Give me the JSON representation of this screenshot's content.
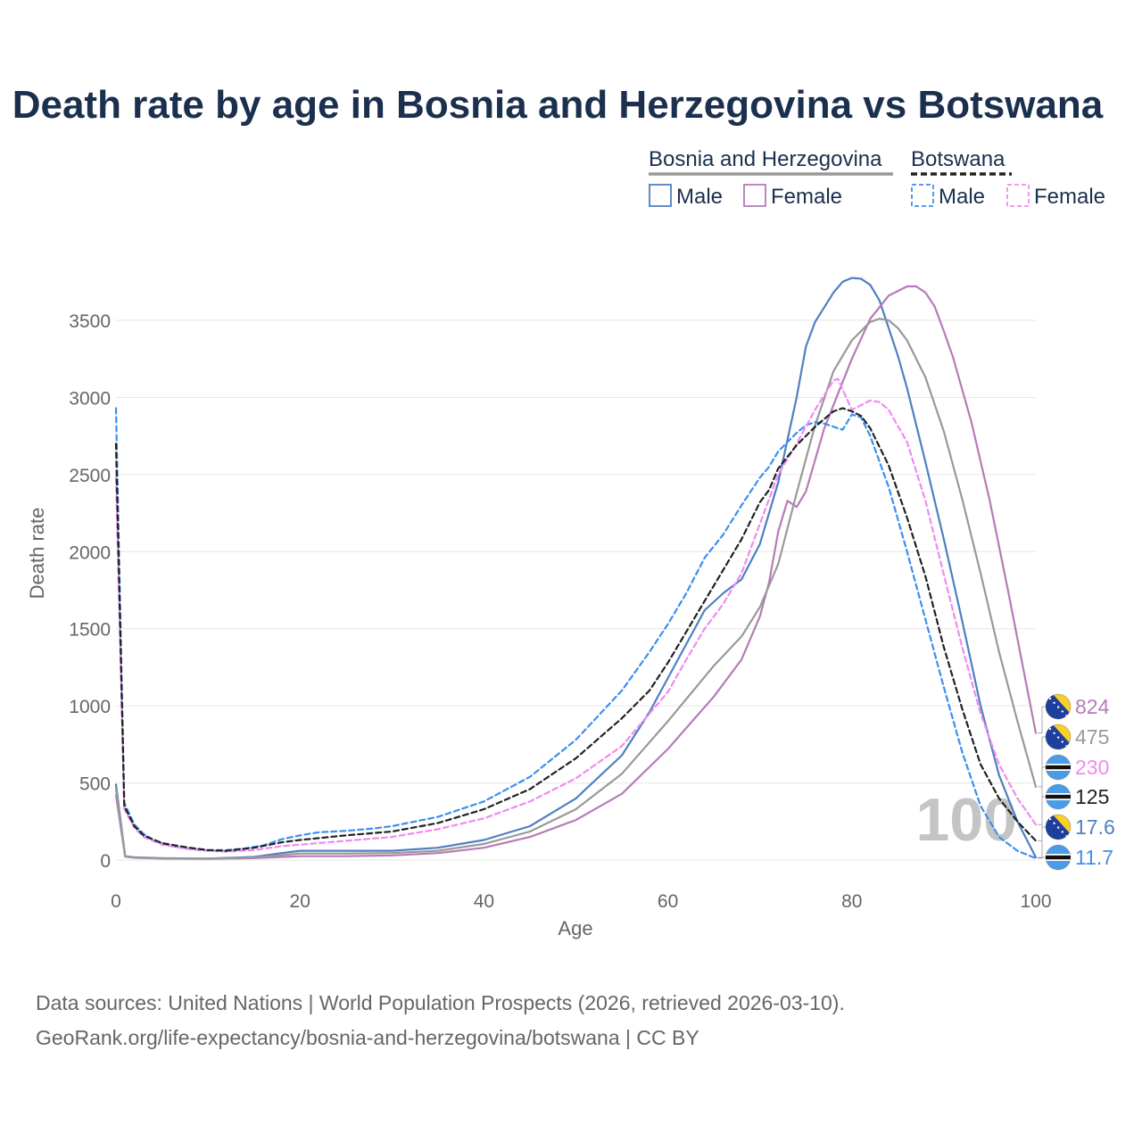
{
  "chart_data": {
    "type": "line",
    "title": "Death rate by age in Bosnia and Herzegovina vs Botswana",
    "xlabel": "Age",
    "ylabel": "Death rate",
    "xlim": [
      0,
      100
    ],
    "ylim": [
      -80,
      3800
    ],
    "x_ticks": [
      0,
      20,
      40,
      60,
      80,
      100
    ],
    "y_ticks": [
      0,
      500,
      1000,
      1500,
      2000,
      2500,
      3000,
      3500
    ],
    "grid": true,
    "watermark": "100",
    "legend": {
      "groups": [
        {
          "name": "Bosnia and Herzegovina",
          "sample_color": "#999999",
          "dash": false,
          "items": [
            {
              "label": "Male",
              "color": "#4f7fc1"
            },
            {
              "label": "Female",
              "color": "#b57bb8"
            }
          ]
        },
        {
          "name": "Botswana",
          "sample_color": "#222222",
          "dash": true,
          "items": [
            {
              "label": "Male",
              "color": "#3d8ff0"
            },
            {
              "label": "Female",
              "color": "#f28af0"
            }
          ]
        }
      ]
    },
    "series": [
      {
        "name": "Bosnia and Herzegovina Male",
        "color": "#4f7fc1",
        "dash": false,
        "width": 2.2,
        "points": [
          [
            0,
            490
          ],
          [
            1,
            25
          ],
          [
            2,
            18
          ],
          [
            5,
            12
          ],
          [
            10,
            10
          ],
          [
            15,
            20
          ],
          [
            18,
            45
          ],
          [
            20,
            60
          ],
          [
            25,
            60
          ],
          [
            30,
            60
          ],
          [
            35,
            80
          ],
          [
            40,
            130
          ],
          [
            45,
            220
          ],
          [
            50,
            400
          ],
          [
            55,
            680
          ],
          [
            58,
            960
          ],
          [
            60,
            1180
          ],
          [
            62,
            1400
          ],
          [
            64,
            1620
          ],
          [
            66,
            1730
          ],
          [
            68,
            1820
          ],
          [
            70,
            2050
          ],
          [
            72,
            2450
          ],
          [
            74,
            3000
          ],
          [
            75,
            3330
          ],
          [
            76,
            3490
          ],
          [
            78,
            3680
          ],
          [
            79,
            3750
          ],
          [
            80,
            3775
          ],
          [
            81,
            3770
          ],
          [
            82,
            3730
          ],
          [
            83,
            3630
          ],
          [
            85,
            3270
          ],
          [
            86,
            3060
          ],
          [
            88,
            2580
          ],
          [
            90,
            2080
          ],
          [
            92,
            1550
          ],
          [
            94,
            1000
          ],
          [
            96,
            550
          ],
          [
            98,
            250
          ],
          [
            100,
            17.6
          ]
        ]
      },
      {
        "name": "Bosnia and Herzegovina Female",
        "color": "#b57bb8",
        "dash": false,
        "width": 2.2,
        "points": [
          [
            0,
            420
          ],
          [
            1,
            22
          ],
          [
            2,
            15
          ],
          [
            5,
            10
          ],
          [
            10,
            8
          ],
          [
            15,
            12
          ],
          [
            20,
            25
          ],
          [
            25,
            25
          ],
          [
            30,
            30
          ],
          [
            35,
            45
          ],
          [
            40,
            80
          ],
          [
            45,
            150
          ],
          [
            50,
            260
          ],
          [
            55,
            430
          ],
          [
            60,
            720
          ],
          [
            65,
            1060
          ],
          [
            68,
            1300
          ],
          [
            70,
            1580
          ],
          [
            71,
            1800
          ],
          [
            72,
            2130
          ],
          [
            73,
            2330
          ],
          [
            74,
            2290
          ],
          [
            75,
            2390
          ],
          [
            77,
            2800
          ],
          [
            80,
            3250
          ],
          [
            82,
            3510
          ],
          [
            84,
            3660
          ],
          [
            86,
            3720
          ],
          [
            87,
            3720
          ],
          [
            88,
            3680
          ],
          [
            89,
            3590
          ],
          [
            90,
            3430
          ],
          [
            91,
            3260
          ],
          [
            93,
            2840
          ],
          [
            95,
            2330
          ],
          [
            97,
            1740
          ],
          [
            100,
            824
          ]
        ]
      },
      {
        "name": "Bosnia and Herzegovina Total",
        "color": "#999999",
        "dash": false,
        "width": 2.2,
        "points": [
          [
            0,
            460
          ],
          [
            1,
            24
          ],
          [
            2,
            16
          ],
          [
            5,
            11
          ],
          [
            10,
            9
          ],
          [
            15,
            16
          ],
          [
            20,
            42
          ],
          [
            25,
            42
          ],
          [
            30,
            45
          ],
          [
            35,
            60
          ],
          [
            40,
            105
          ],
          [
            45,
            185
          ],
          [
            50,
            330
          ],
          [
            55,
            560
          ],
          [
            60,
            900
          ],
          [
            65,
            1260
          ],
          [
            68,
            1450
          ],
          [
            70,
            1640
          ],
          [
            72,
            1920
          ],
          [
            74,
            2380
          ],
          [
            76,
            2820
          ],
          [
            78,
            3170
          ],
          [
            80,
            3370
          ],
          [
            82,
            3490
          ],
          [
            83,
            3510
          ],
          [
            84,
            3500
          ],
          [
            85,
            3450
          ],
          [
            86,
            3370
          ],
          [
            88,
            3130
          ],
          [
            90,
            2780
          ],
          [
            92,
            2340
          ],
          [
            94,
            1860
          ],
          [
            96,
            1350
          ],
          [
            98,
            900
          ],
          [
            100,
            475
          ]
        ]
      },
      {
        "name": "Botswana Male",
        "color": "#3d8ff0",
        "dash": true,
        "width": 2.2,
        "points": [
          [
            0,
            2930
          ],
          [
            0.9,
            370
          ],
          [
            2,
            230
          ],
          [
            3,
            170
          ],
          [
            4,
            130
          ],
          [
            6,
            90
          ],
          [
            8,
            75
          ],
          [
            10,
            65
          ],
          [
            12,
            65
          ],
          [
            14,
            75
          ],
          [
            16,
            95
          ],
          [
            18,
            135
          ],
          [
            20,
            160
          ],
          [
            22,
            180
          ],
          [
            25,
            190
          ],
          [
            28,
            205
          ],
          [
            30,
            220
          ],
          [
            35,
            280
          ],
          [
            40,
            380
          ],
          [
            45,
            540
          ],
          [
            50,
            780
          ],
          [
            55,
            1100
          ],
          [
            58,
            1350
          ],
          [
            60,
            1530
          ],
          [
            62,
            1730
          ],
          [
            64,
            1960
          ],
          [
            66,
            2110
          ],
          [
            68,
            2300
          ],
          [
            70,
            2480
          ],
          [
            71,
            2550
          ],
          [
            72,
            2650
          ],
          [
            74,
            2770
          ],
          [
            75,
            2820
          ],
          [
            76,
            2840
          ],
          [
            77,
            2830
          ],
          [
            78,
            2810
          ],
          [
            79,
            2790
          ],
          [
            80,
            2890
          ],
          [
            81,
            2870
          ],
          [
            82,
            2750
          ],
          [
            84,
            2420
          ],
          [
            86,
            2000
          ],
          [
            88,
            1560
          ],
          [
            90,
            1120
          ],
          [
            92,
            700
          ],
          [
            94,
            350
          ],
          [
            96,
            150
          ],
          [
            98,
            60
          ],
          [
            100,
            11.7
          ]
        ]
      },
      {
        "name": "Botswana Female",
        "color": "#f28af0",
        "dash": true,
        "width": 2.2,
        "points": [
          [
            0,
            2480
          ],
          [
            0.9,
            330
          ],
          [
            2,
            210
          ],
          [
            3,
            150
          ],
          [
            5,
            100
          ],
          [
            8,
            70
          ],
          [
            10,
            60
          ],
          [
            12,
            55
          ],
          [
            15,
            65
          ],
          [
            18,
            90
          ],
          [
            20,
            100
          ],
          [
            25,
            125
          ],
          [
            30,
            150
          ],
          [
            35,
            200
          ],
          [
            40,
            270
          ],
          [
            45,
            380
          ],
          [
            50,
            530
          ],
          [
            55,
            740
          ],
          [
            60,
            1090
          ],
          [
            62,
            1300
          ],
          [
            64,
            1500
          ],
          [
            66,
            1660
          ],
          [
            68,
            1860
          ],
          [
            70,
            2180
          ],
          [
            72,
            2500
          ],
          [
            74,
            2700
          ],
          [
            76,
            2920
          ],
          [
            78,
            3110
          ],
          [
            78.5,
            3120
          ],
          [
            79,
            3050
          ],
          [
            80,
            2920
          ],
          [
            82,
            2980
          ],
          [
            83,
            2970
          ],
          [
            84,
            2920
          ],
          [
            86,
            2710
          ],
          [
            88,
            2330
          ],
          [
            90,
            1850
          ],
          [
            92,
            1380
          ],
          [
            94,
            950
          ],
          [
            96,
            620
          ],
          [
            98,
            400
          ],
          [
            100,
            230
          ]
        ]
      },
      {
        "name": "Botswana Total",
        "color": "#222222",
        "dash": true,
        "width": 2.2,
        "points": [
          [
            0,
            2700
          ],
          [
            0.9,
            350
          ],
          [
            2,
            220
          ],
          [
            3,
            160
          ],
          [
            5,
            110
          ],
          [
            8,
            80
          ],
          [
            10,
            65
          ],
          [
            12,
            60
          ],
          [
            15,
            80
          ],
          [
            18,
            115
          ],
          [
            20,
            130
          ],
          [
            25,
            160
          ],
          [
            30,
            185
          ],
          [
            35,
            240
          ],
          [
            40,
            330
          ],
          [
            45,
            460
          ],
          [
            50,
            660
          ],
          [
            55,
            920
          ],
          [
            58,
            1100
          ],
          [
            60,
            1280
          ],
          [
            62,
            1480
          ],
          [
            64,
            1680
          ],
          [
            66,
            1880
          ],
          [
            68,
            2080
          ],
          [
            70,
            2320
          ],
          [
            71,
            2400
          ],
          [
            72,
            2540
          ],
          [
            74,
            2690
          ],
          [
            76,
            2810
          ],
          [
            77,
            2860
          ],
          [
            78,
            2910
          ],
          [
            79,
            2930
          ],
          [
            80,
            2910
          ],
          [
            81,
            2880
          ],
          [
            82,
            2800
          ],
          [
            84,
            2560
          ],
          [
            86,
            2220
          ],
          [
            88,
            1840
          ],
          [
            90,
            1380
          ],
          [
            92,
            980
          ],
          [
            94,
            620
          ],
          [
            96,
            400
          ],
          [
            98,
            250
          ],
          [
            100,
            125
          ]
        ]
      }
    ],
    "end_labels": [
      {
        "text": "824",
        "color": "#b57bb8",
        "flag": "bih"
      },
      {
        "text": "475",
        "color": "#999999",
        "flag": "bih"
      },
      {
        "text": "230",
        "color": "#f28af0",
        "flag": "bwa"
      },
      {
        "text": "125",
        "color": "#222222",
        "flag": "bwa"
      },
      {
        "text": "17.6",
        "color": "#4f7fc1",
        "flag": "bih"
      },
      {
        "text": "11.7",
        "color": "#3d8ff0",
        "flag": "bwa"
      }
    ]
  },
  "footer": {
    "source_line1": "Data sources: United Nations | World Population Prospects (2026, retrieved 2026-03-10).",
    "source_line2": "GeoRank.org/life-expectancy/bosnia-and-herzegovina/botswana | CC BY"
  }
}
